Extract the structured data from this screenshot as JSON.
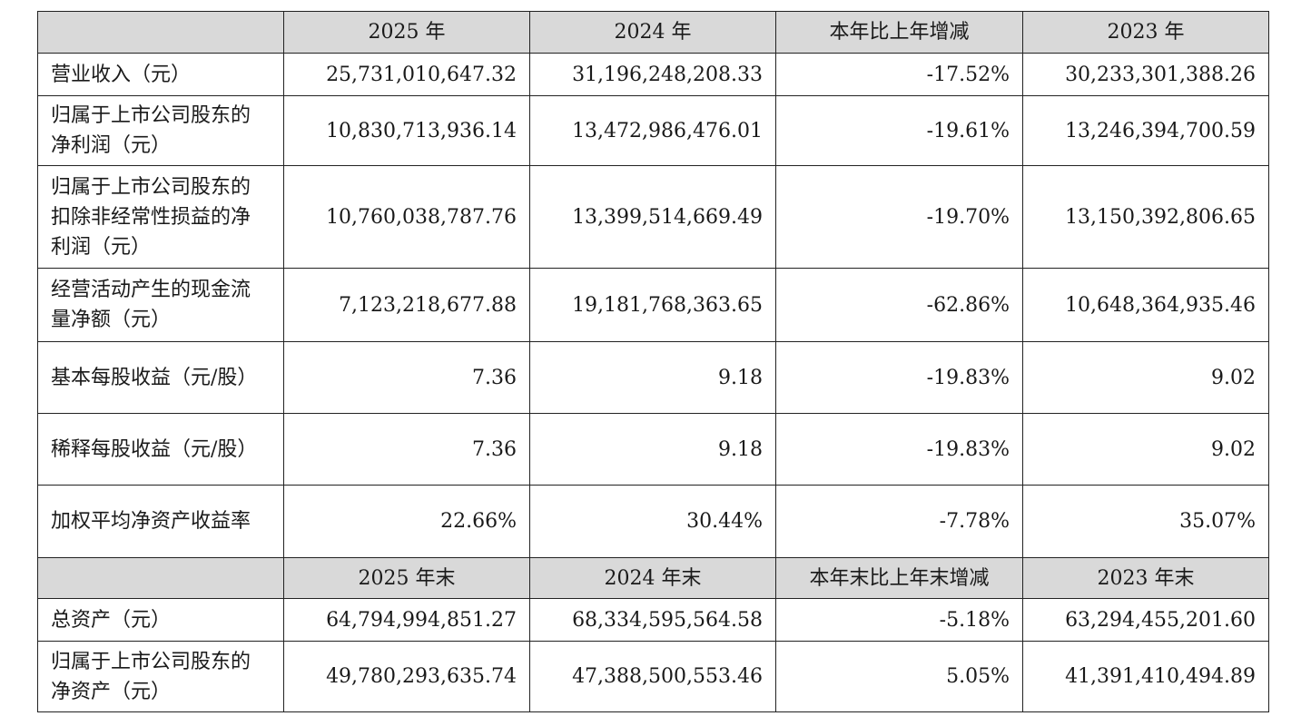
{
  "header_top": [
    "",
    "2025 年",
    "2024 年",
    "本年比上年增减",
    "2023 年"
  ],
  "rows_top": [
    {
      "label": "营业收入（元）",
      "values": [
        "25,731,010,647.32",
        "31,196,248,208.33",
        "-17.52%",
        "30,233,301,388.26"
      ]
    },
    {
      "label": "归属于上市公司股东的净利润（元）",
      "values": [
        "10,830,713,936.14",
        "13,472,986,476.01",
        "-19.61%",
        "13,246,394,700.59"
      ]
    },
    {
      "label": "归属于上市公司股东的扣除非经常性损益的净利润（元）",
      "values": [
        "10,760,038,787.76",
        "13,399,514,669.49",
        "-19.70%",
        "13,150,392,806.65"
      ]
    },
    {
      "label": "经营活动产生的现金流量净额（元）",
      "values": [
        "7,123,218,677.88",
        "19,181,768,363.65",
        "-62.86%",
        "10,648,364,935.46"
      ]
    },
    {
      "label": "基本每股收益（元/股）",
      "values": [
        "7.36",
        "9.18",
        "-19.83%",
        "9.02"
      ]
    },
    {
      "label": "稀释每股收益（元/股）",
      "values": [
        "7.36",
        "9.18",
        "-19.83%",
        "9.02"
      ]
    },
    {
      "label": "加权平均净资产收益率",
      "values": [
        "22.66%",
        "30.44%",
        "-7.78%",
        "35.07%"
      ]
    }
  ],
  "header_bottom": [
    "",
    "2025 年末",
    "2024 年末",
    "本年末比上年末增减",
    "2023 年末"
  ],
  "rows_bottom": [
    {
      "label": "总资产（元）",
      "values": [
        "64,794,994,851.27",
        "68,334,595,564.58",
        "-5.18%",
        "63,294,455,201.60"
      ]
    },
    {
      "label": "归属于上市公司股东的净资产（元）",
      "values": [
        "49,780,293,635.74",
        "47,388,500,553.46",
        "5.05%",
        "41,391,410,494.89"
      ]
    }
  ]
}
